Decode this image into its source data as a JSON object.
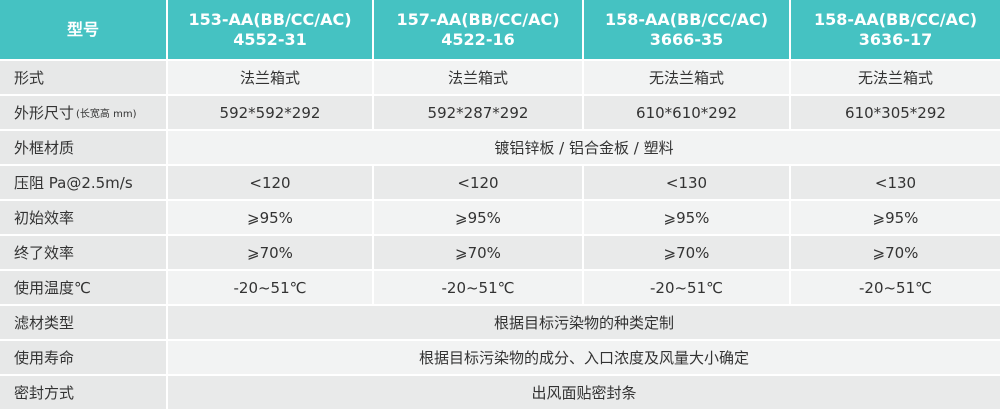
{
  "header": [
    "型号",
    [
      "153-AA(BB/CC/AC)",
      "4552-31"
    ],
    [
      "157-AA(BB/CC/AC)",
      "4522-16"
    ],
    [
      "158-AA(BB/CC/AC)",
      "3666-35"
    ],
    [
      "158-AA(BB/CC/AC)",
      "3636-17"
    ]
  ],
  "rows": [
    {
      "label": "形式",
      "values": [
        "法兰箱式",
        "法兰箱式",
        "无法兰箱式",
        "无法兰箱式"
      ]
    },
    {
      "label": "外形尺寸",
      "note": "(长宽高 mm)",
      "values": [
        "592*592*292",
        "592*287*292",
        "610*610*292",
        "610*305*292"
      ]
    },
    {
      "label": "外框材质",
      "values": [
        "镀铝锌板 / 铝合金板 / 塑料"
      ]
    },
    {
      "label": "压阻 Pa@2.5m/s",
      "values": [
        "<120",
        "<120",
        "<130",
        "<130"
      ]
    },
    {
      "label": "初始效率",
      "values": [
        "⩾95%",
        "⩾95%",
        "⩾95%",
        "⩾95%"
      ]
    },
    {
      "label": "终了效率",
      "values": [
        "⩾70%",
        "⩾70%",
        "⩾70%",
        "⩾70%"
      ]
    },
    {
      "label": "使用温度℃",
      "values": [
        "-20~51℃",
        "-20~51℃",
        "-20~51℃",
        "-20~51℃"
      ]
    },
    {
      "label": "滤材类型",
      "values": [
        "根据目标污染物的种类定制"
      ]
    },
    {
      "label": "使用寿命",
      "values": [
        "根据目标污染物的成分、入口浓度及风量大小确定"
      ]
    },
    {
      "label": "密封方式",
      "values": [
        "出风面贴密封条"
      ]
    }
  ]
}
